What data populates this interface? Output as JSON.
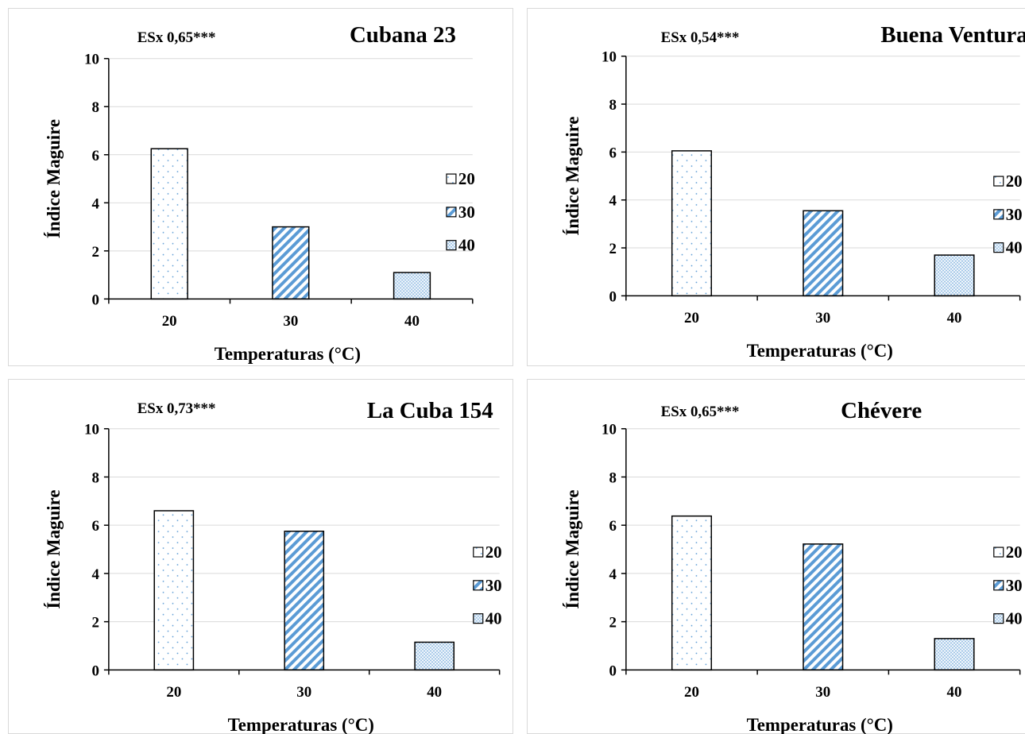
{
  "chart_data": [
    {
      "type": "bar",
      "title": "Cubana 23",
      "annotation": "ESx 0,65***",
      "xlabel": "Temperaturas (°C)",
      "ylabel": "Índice Maguire",
      "categories": [
        "20",
        "30",
        "40"
      ],
      "values": [
        6.25,
        3.0,
        1.1
      ],
      "ylim": [
        0,
        10
      ],
      "yticks": [
        "0",
        "2",
        "4",
        "6",
        "8",
        "10"
      ],
      "grid": true,
      "legend": [
        "20",
        "30",
        "40"
      ],
      "legend_position": "right"
    },
    {
      "type": "bar",
      "title": "Buena Ventura",
      "annotation": "ESx 0,54***",
      "xlabel": "Temperaturas (°C)",
      "ylabel": "Índice Maguire",
      "categories": [
        "20",
        "30",
        "40"
      ],
      "values": [
        6.05,
        3.55,
        1.7
      ],
      "ylim": [
        0,
        10
      ],
      "yticks": [
        "0",
        "2",
        "4",
        "6",
        "8",
        "10"
      ],
      "grid": true,
      "legend": [
        "20",
        "30",
        "40"
      ],
      "legend_position": "right"
    },
    {
      "type": "bar",
      "title": "La Cuba 154",
      "annotation": "ESx 0,73***",
      "xlabel": "Temperaturas (°C)",
      "ylabel": "Índice Maguire",
      "categories": [
        "20",
        "30",
        "40"
      ],
      "values": [
        6.6,
        5.75,
        1.15
      ],
      "ylim": [
        0,
        10
      ],
      "yticks": [
        "0",
        "2",
        "4",
        "6",
        "8",
        "10"
      ],
      "grid": true,
      "legend": [
        "20",
        "30",
        "40"
      ],
      "legend_position": "right"
    },
    {
      "type": "bar",
      "title": "Chévere",
      "annotation": "ESx 0,65***",
      "xlabel": "Temperaturas (°C)",
      "ylabel": "Índice Maguire",
      "categories": [
        "20",
        "30",
        "40"
      ],
      "values": [
        6.38,
        5.22,
        1.3
      ],
      "ylim": [
        0,
        10
      ],
      "yticks": [
        "0",
        "2",
        "4",
        "6",
        "8",
        "10"
      ],
      "grid": true,
      "legend": [
        "20",
        "30",
        "40"
      ],
      "legend_position": "right"
    }
  ],
  "colors": {
    "bar_outline": "#000000",
    "pattern": "#5b9bd5",
    "pattern_light": "#9dc3e6",
    "grid": "#d9d9d9",
    "axis": "#000000",
    "panel_border": "#d9d9d9"
  }
}
